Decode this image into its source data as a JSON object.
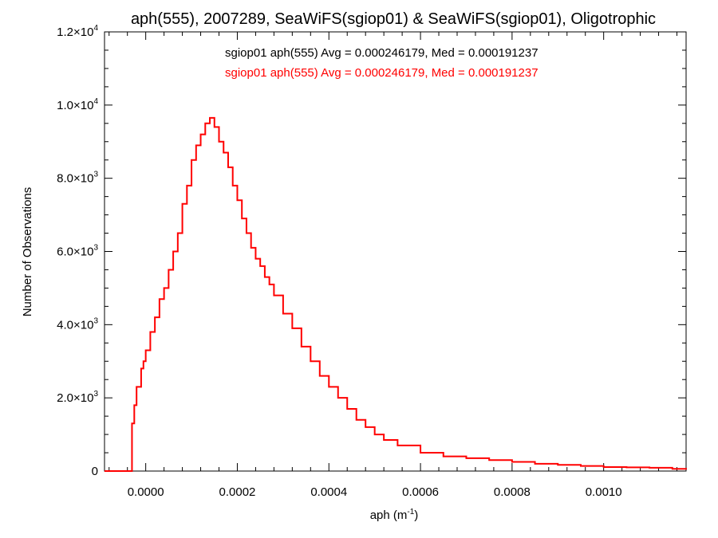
{
  "chart_data": {
    "type": "line",
    "title": "aph(555), 2007289, SeaWiFS(sgiop01) & SeaWiFS(sgiop01), Oligotrophic",
    "xlabel": "aph (m",
    "xlabel_sup": "-1",
    "xlabel_end": ")",
    "ylabel": "Number of Observations",
    "xlim": [
      -9e-05,
      0.00118
    ],
    "ylim": [
      0,
      12000
    ],
    "x_ticks": [
      {
        "value": 0.0,
        "label": "0.0000"
      },
      {
        "value": 0.0002,
        "label": "0.0002"
      },
      {
        "value": 0.0004,
        "label": "0.0004"
      },
      {
        "value": 0.0006,
        "label": "0.0006"
      },
      {
        "value": 0.0008,
        "label": "0.0008"
      },
      {
        "value": 0.001,
        "label": "0.0010"
      }
    ],
    "y_ticks": [
      {
        "value": 0,
        "mant": "0",
        "exp": ""
      },
      {
        "value": 2000,
        "mant": "2.0×10",
        "exp": "3"
      },
      {
        "value": 4000,
        "mant": "4.0×10",
        "exp": "3"
      },
      {
        "value": 6000,
        "mant": "6.0×10",
        "exp": "3"
      },
      {
        "value": 8000,
        "mant": "8.0×10",
        "exp": "3"
      },
      {
        "value": 10000,
        "mant": "1.0×10",
        "exp": "4"
      },
      {
        "value": 12000,
        "mant": "1.2×10",
        "exp": "4"
      }
    ],
    "legend": [
      {
        "text": "sgiop01 aph(555) Avg = 0.000246179, Med = 0.000191237",
        "color": "#000000"
      },
      {
        "text": "sgiop01 aph(555) Avg = 0.000246179, Med = 0.000191237",
        "color": "#ff0000"
      }
    ],
    "series": [
      {
        "color": "#ff0000",
        "x": [
          -9e-05,
          -4e-05,
          -3.5e-05,
          -3e-05,
          -2.5e-05,
          -2e-05,
          -1e-05,
          -5e-06,
          0.0,
          1e-05,
          2e-05,
          3e-05,
          4e-05,
          5e-05,
          6e-05,
          7e-05,
          8e-05,
          9e-05,
          0.0001,
          0.00011,
          0.00012,
          0.00013,
          0.00014,
          0.00015,
          0.00016,
          0.00017,
          0.00018,
          0.00019,
          0.0002,
          0.00021,
          0.00022,
          0.00023,
          0.00024,
          0.00025,
          0.00026,
          0.00027,
          0.00028,
          0.0003,
          0.00032,
          0.00034,
          0.00036,
          0.00038,
          0.0004,
          0.00042,
          0.00044,
          0.00046,
          0.00048,
          0.0005,
          0.00052,
          0.00055,
          0.0006,
          0.00065,
          0.0007,
          0.00075,
          0.0008,
          0.00085,
          0.0009,
          0.00095,
          0.001,
          0.00105,
          0.0011,
          0.00115,
          0.00118
        ],
        "y": [
          0,
          0,
          0,
          1300,
          1800,
          2300,
          2800,
          3000,
          3300,
          3800,
          4200,
          4700,
          5000,
          5500,
          6000,
          6500,
          7300,
          7800,
          8500,
          8900,
          9200,
          9500,
          9650,
          9400,
          9000,
          8700,
          8300,
          7800,
          7400,
          6900,
          6500,
          6100,
          5800,
          5600,
          5300,
          5100,
          4800,
          4300,
          3900,
          3400,
          3000,
          2600,
          2300,
          2000,
          1700,
          1400,
          1200,
          1000,
          850,
          700,
          500,
          400,
          350,
          300,
          250,
          200,
          170,
          140,
          110,
          100,
          90,
          60,
          40
        ]
      }
    ]
  }
}
